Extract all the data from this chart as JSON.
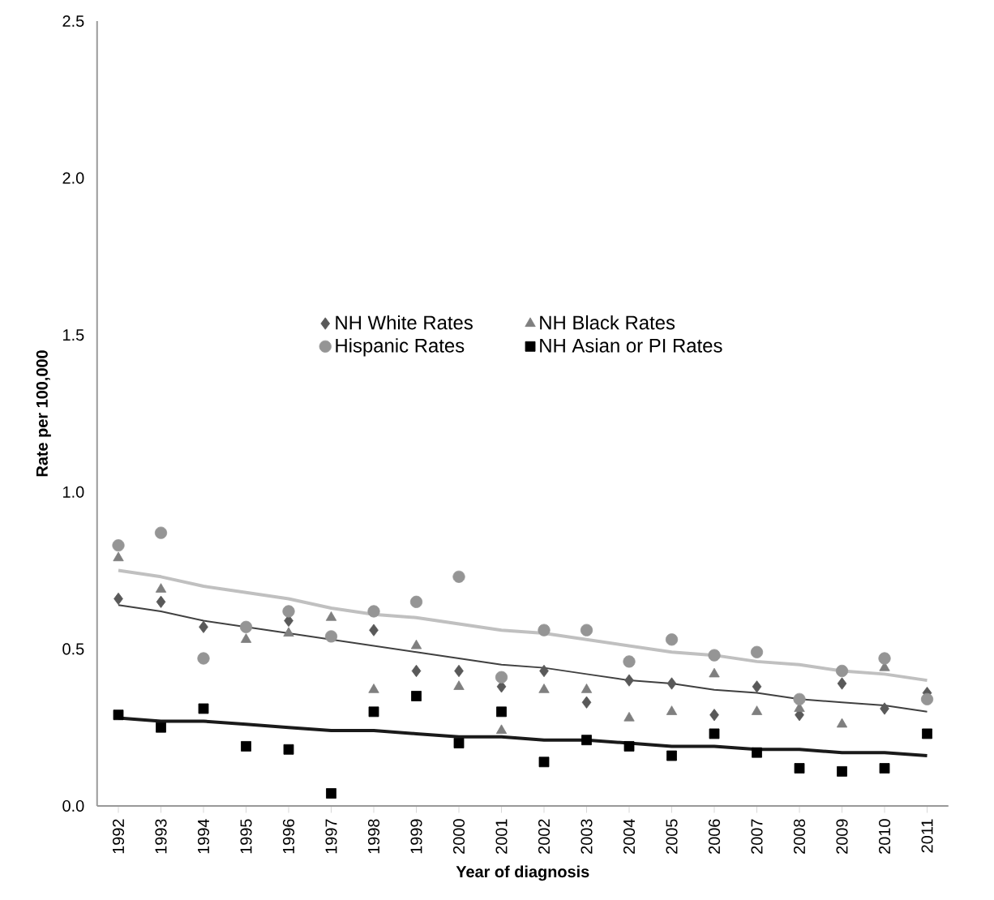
{
  "chart_data": {
    "type": "scatter",
    "xlabel": "Year of diagnosis",
    "ylabel": "Rate per 100,000",
    "categories": [
      "1992",
      "1993",
      "1994",
      "1995",
      "1996",
      "1997",
      "1998",
      "1999",
      "2000",
      "2001",
      "2002",
      "2003",
      "2004",
      "2005",
      "2006",
      "2007",
      "2008",
      "2009",
      "2010",
      "2011"
    ],
    "ylim": [
      0,
      2.5
    ],
    "yticks": [
      {
        "value": 0,
        "label": "0.0"
      },
      {
        "value": 0.5,
        "label": "0.5"
      },
      {
        "value": 1,
        "label": "1.0"
      },
      {
        "value": 1.5,
        "label": "1.5"
      },
      {
        "value": 2,
        "label": "2.0"
      },
      {
        "value": 2.5,
        "label": "2.5"
      }
    ],
    "grid": false,
    "legend": "center",
    "series": [
      {
        "name": "NH White Rates",
        "marker": "diamond",
        "color": "#595959",
        "values": [
          0.66,
          0.65,
          0.57,
          null,
          0.59,
          null,
          0.56,
          0.43,
          0.43,
          0.38,
          0.43,
          0.33,
          0.4,
          0.39,
          0.29,
          0.38,
          0.29,
          0.39,
          0.31,
          0.36
        ]
      },
      {
        "name": "NH Black Rates",
        "marker": "triangle",
        "color": "#7f7f7f",
        "values": [
          0.79,
          0.69,
          null,
          0.53,
          0.55,
          0.6,
          0.37,
          0.51,
          0.38,
          0.24,
          0.37,
          0.37,
          0.28,
          0.3,
          0.42,
          0.3,
          0.31,
          0.26,
          0.44,
          null
        ]
      },
      {
        "name": "Hispanic Rates",
        "marker": "circle",
        "color": "#959595",
        "values": [
          0.83,
          0.87,
          0.47,
          0.57,
          0.62,
          0.54,
          0.62,
          0.65,
          0.73,
          0.41,
          0.56,
          0.56,
          0.46,
          0.53,
          0.48,
          0.49,
          0.34,
          0.43,
          0.47,
          0.34
        ]
      },
      {
        "name": "NH Asian or PI Rates",
        "marker": "square",
        "color": "#000000",
        "values": [
          0.29,
          0.25,
          0.31,
          0.19,
          0.18,
          0.04,
          0.3,
          0.35,
          0.2,
          0.3,
          0.14,
          0.21,
          0.19,
          0.16,
          0.23,
          0.17,
          0.12,
          0.11,
          0.12,
          0.23
        ]
      },
      {
        "type": "line",
        "marker": "none",
        "line_style": "solid",
        "color": "#c0c0c0",
        "values": [
          0.75,
          0.73,
          0.7,
          0.68,
          0.66,
          0.63,
          0.61,
          0.6,
          0.58,
          0.56,
          0.55,
          0.53,
          0.51,
          0.49,
          0.48,
          0.46,
          0.45,
          0.43,
          0.42,
          0.4
        ]
      },
      {
        "type": "line",
        "marker": "none",
        "line_style": "solid",
        "color": "#404040",
        "values": [
          0.64,
          0.62,
          0.59,
          0.57,
          0.55,
          0.53,
          0.51,
          0.49,
          0.47,
          0.45,
          0.44,
          0.42,
          0.4,
          0.39,
          0.37,
          0.36,
          0.34,
          0.33,
          0.32,
          0.3
        ]
      },
      {
        "type": "line",
        "marker": "none",
        "line_style": "solid",
        "color": "#1a1a1a",
        "values": [
          0.28,
          0.27,
          0.27,
          0.26,
          0.25,
          0.24,
          0.24,
          0.23,
          0.22,
          0.22,
          0.21,
          0.21,
          0.2,
          0.19,
          0.19,
          0.18,
          0.18,
          0.17,
          0.17,
          0.16
        ]
      }
    ]
  }
}
